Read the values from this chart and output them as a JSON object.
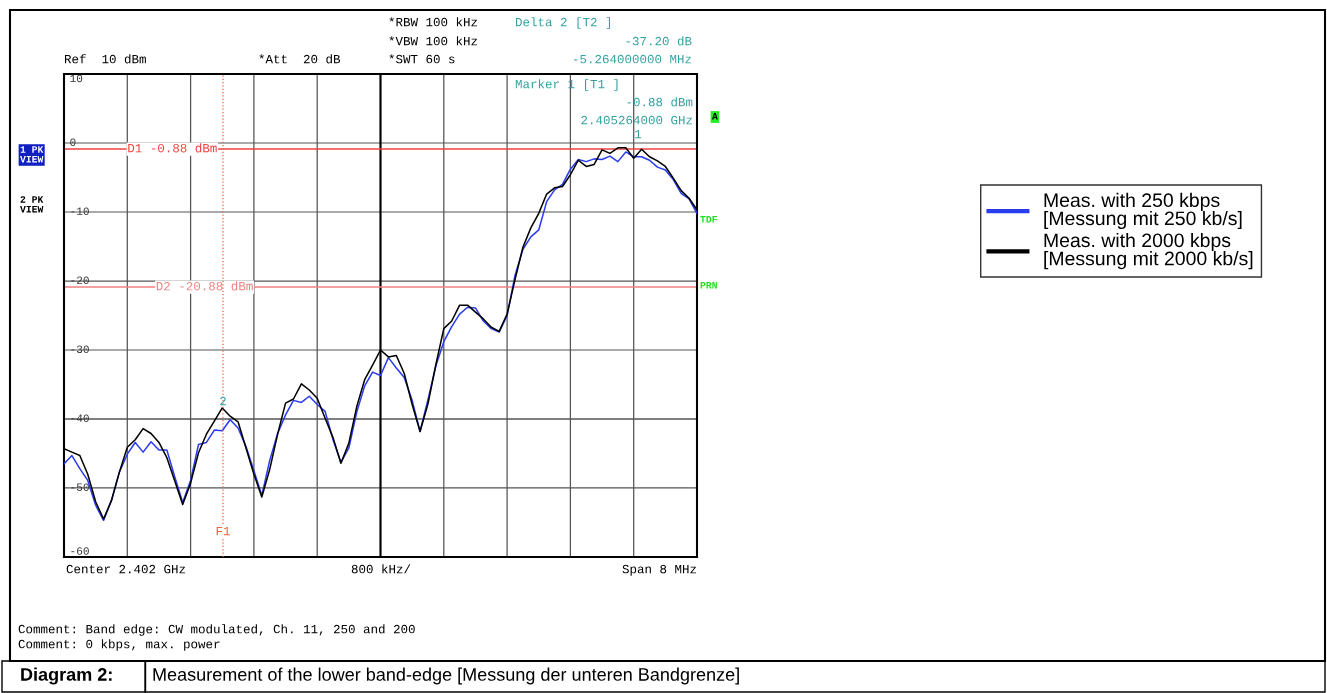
{
  "chart_data": {
    "type": "line",
    "title": "Measurement of the lower band-edge [Messung der unteren Bandgrenze]",
    "categories": [
      null,
      null,
      null,
      null,
      null,
      null,
      null,
      null,
      null,
      null,
      null,
      null,
      null,
      null,
      null,
      null,
      null,
      null,
      null,
      null,
      null,
      null,
      null,
      null,
      null,
      null,
      null,
      null,
      null,
      null,
      null,
      null,
      null,
      null,
      null,
      null,
      null,
      null,
      null,
      null,
      null,
      null,
      null,
      null,
      null,
      null,
      null,
      null,
      null,
      null,
      null,
      null,
      null,
      null,
      null,
      null,
      null,
      null,
      null,
      null,
      null,
      null,
      null,
      null,
      null,
      null,
      null,
      null,
      null,
      null,
      null,
      null,
      null,
      null,
      null,
      null,
      null,
      null,
      null,
      null,
      null
    ],
    "ylim": [
      -60,
      10
    ],
    "yticks": [
      -60,
      -50,
      -40,
      -30,
      -20,
      -10,
      0,
      10
    ],
    "tick_labels": "y",
    "grid": true,
    "legend": "right",
    "marker": "none",
    "line_style": "solid",
    "series": [
      {
        "name": "Meas. with 250 kbps\n[Messung mit 250 kb/s]",
        "color": "#2a3cf0",
        "values": [
          -46.5,
          -45.3,
          -47.2,
          -48.9,
          -52.5,
          -54.7,
          -51.8,
          -47.7,
          -45.1,
          -43.4,
          -44.8,
          -43.3,
          -44.5,
          -44.5,
          -48.4,
          -52.1,
          -48.9,
          -43.7,
          -43.4,
          -41.6,
          -41.7,
          -40.1,
          -41.3,
          -44.0,
          -47.5,
          -51.1,
          -46.0,
          -42.1,
          -39.4,
          -37.3,
          -37.6,
          -36.7,
          -37.9,
          -38.9,
          -43.0,
          -46.3,
          -44.2,
          -39.0,
          -35.2,
          -33.2,
          -33.7,
          -31.1,
          -32.6,
          -34.0,
          -37.3,
          -41.8,
          -37.2,
          -32.3,
          -28.8,
          -26.6,
          -24.8,
          -23.8,
          -23.9,
          -25.8,
          -26.9,
          -27.4,
          -25.0,
          -19.2,
          -15.4,
          -13.6,
          -12.6,
          -8.5,
          -6.8,
          -6.0,
          -3.8,
          -2.4,
          -2.7,
          -2.3,
          -2.4,
          -1.9,
          -2.7,
          -1.3,
          -2.0,
          -2.0,
          -2.5,
          -3.5,
          -3.9,
          -5.3,
          -7.3,
          -8.1,
          -10.2
        ]
      },
      {
        "name": "Meas. with 2000 kbps\n[Messung mit 2000 kb/s]",
        "color": "#000000",
        "values": [
          -44.3,
          -44.8,
          -45.3,
          -48.0,
          -52.0,
          -54.5,
          -51.8,
          -47.7,
          -44.1,
          -43.0,
          -41.4,
          -42.1,
          -43.4,
          -45.6,
          -49.0,
          -52.4,
          -49.3,
          -44.9,
          -42.2,
          -40.3,
          -38.4,
          -39.6,
          -40.4,
          -44.2,
          -48.0,
          -51.3,
          -47.3,
          -42.2,
          -37.7,
          -37.1,
          -34.9,
          -35.8,
          -37.0,
          -39.9,
          -42.7,
          -46.4,
          -43.5,
          -38.2,
          -34.3,
          -32.2,
          -30.0,
          -31.0,
          -30.8,
          -33.4,
          -37.9,
          -41.8,
          -37.8,
          -32.1,
          -26.9,
          -25.8,
          -23.5,
          -23.5,
          -24.5,
          -25.5,
          -26.7,
          -27.3,
          -24.8,
          -19.8,
          -15.1,
          -12.3,
          -10.2,
          -7.4,
          -6.5,
          -6.3,
          -4.6,
          -2.5,
          -3.4,
          -3.1,
          -1.0,
          -1.5,
          -0.7,
          -0.7,
          -2.2,
          -0.9,
          -2.0,
          -2.6,
          -3.4,
          -5.1,
          -6.9,
          -8.0,
          -9.7
        ]
      }
    ],
    "ref_lines": [
      {
        "axis": "y",
        "value": -0.88,
        "label": "D1 -0.88 dBm",
        "color": "#f04040"
      },
      {
        "axis": "y",
        "value": -20.88,
        "label": "D2 -20.88 dBm",
        "color": "#f08080"
      }
    ],
    "annotations": [
      "1",
      "2",
      "Ref  10 dBm",
      "*Att  20 dB",
      "*RBW 100 kHz",
      "*VBW 100 kHz",
      "*SWT 60 s",
      "Delta 2 [T2 ]",
      "-37.20 dB",
      "-5.264000000 MHz",
      "Marker 1 [T1 ]",
      "-0.88 dBm",
      "2.405264000 GHz",
      "1 PK\nVIEW",
      "2 PK\nVIEW",
      "A",
      "TDF",
      "PRN",
      "Center 2.402 GHz",
      "800 kHz/",
      "Span 8 MHz",
      "Comment: Band edge: CW modulated, Ch. 11, 250 and 200",
      "Comment: 0 kbps, max. power",
      "Diagram 2:",
      "F1"
    ]
  }
}
